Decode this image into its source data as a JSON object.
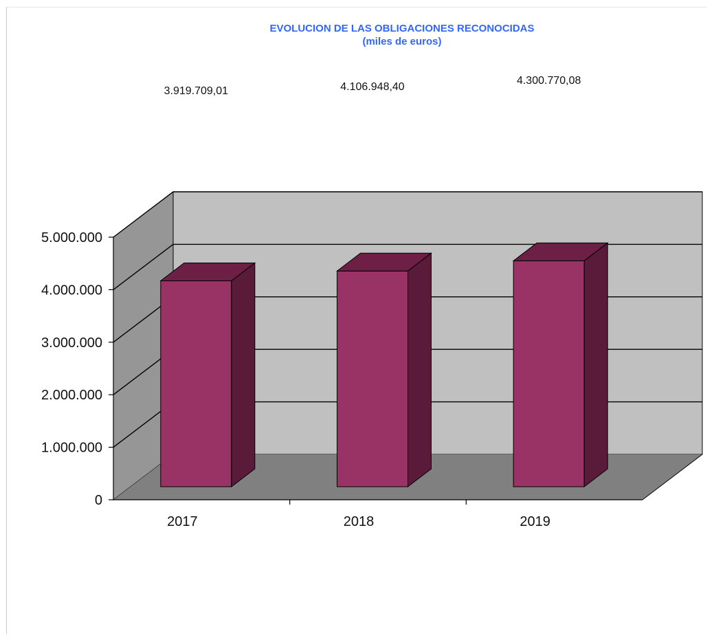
{
  "chart_data": {
    "type": "bar",
    "style": "3d",
    "title": "EVOLUCION DE LAS OBLIGACIONES RECONOCIDAS",
    "subtitle": "(miles de euros)",
    "categories": [
      "2017",
      "2018",
      "2019"
    ],
    "values": [
      3919709.01,
      4106948.4,
      4300770.08
    ],
    "data_labels": [
      "3.919.709,01",
      "4.106.948,40",
      "4.300.770,08"
    ],
    "y_ticks": [
      0,
      1000000,
      2000000,
      3000000,
      4000000,
      5000000
    ],
    "y_tick_labels": [
      "0",
      "1.000.000",
      "2.000.000",
      "3.000.000",
      "4.000.000",
      "5.000.000"
    ],
    "ylim": [
      0,
      5000000
    ],
    "grid": true,
    "legend": "none",
    "colors": {
      "bar_front": "#993366",
      "bar_top": "#6e1f45",
      "bar_side": "#5a1a39",
      "back_wall": "#c0c0c0",
      "side_wall": "#969696",
      "floor": "#808080",
      "title": "#3366ff"
    }
  }
}
